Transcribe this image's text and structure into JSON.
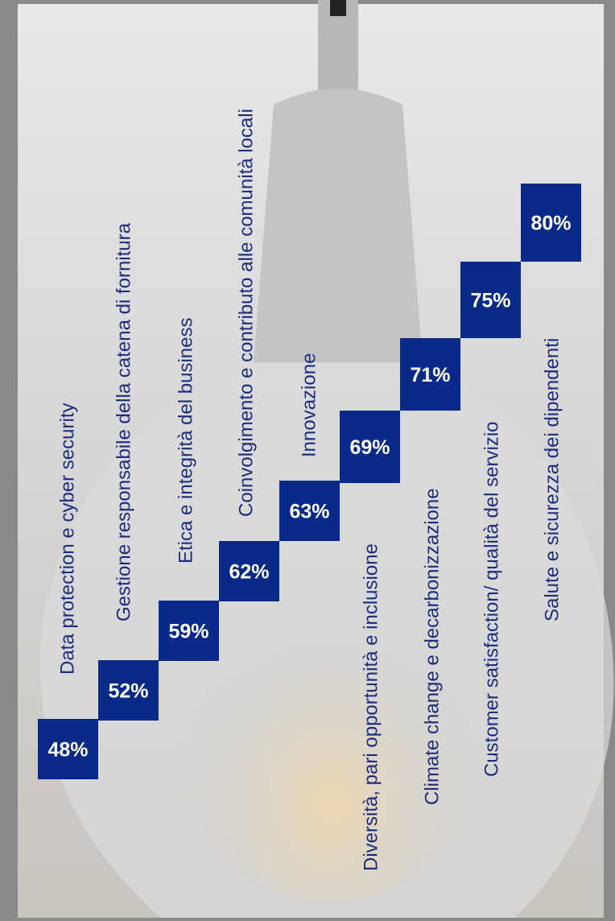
{
  "chart_data": {
    "type": "step",
    "categories": [
      "Data protection e cyber security",
      "Gestione responsabile della catena di fornitura",
      "Etica e integrità del business",
      "Coinvolgimento e contributo alle comunità locali",
      "Innovazione",
      "Diversità, pari opportunità e inclusione",
      "Climate change e decarbonizzazione",
      "Customer satisfaction/ qualità del servizio",
      "Salute e sicurezza dei dipendenti"
    ],
    "values": [
      48,
      52,
      59,
      62,
      63,
      69,
      71,
      75,
      80
    ],
    "value_labels": [
      "48%",
      "52%",
      "59%",
      "62%",
      "63%",
      "69%",
      "71%",
      "75%",
      "80%"
    ],
    "color": "#0a2a8a"
  }
}
